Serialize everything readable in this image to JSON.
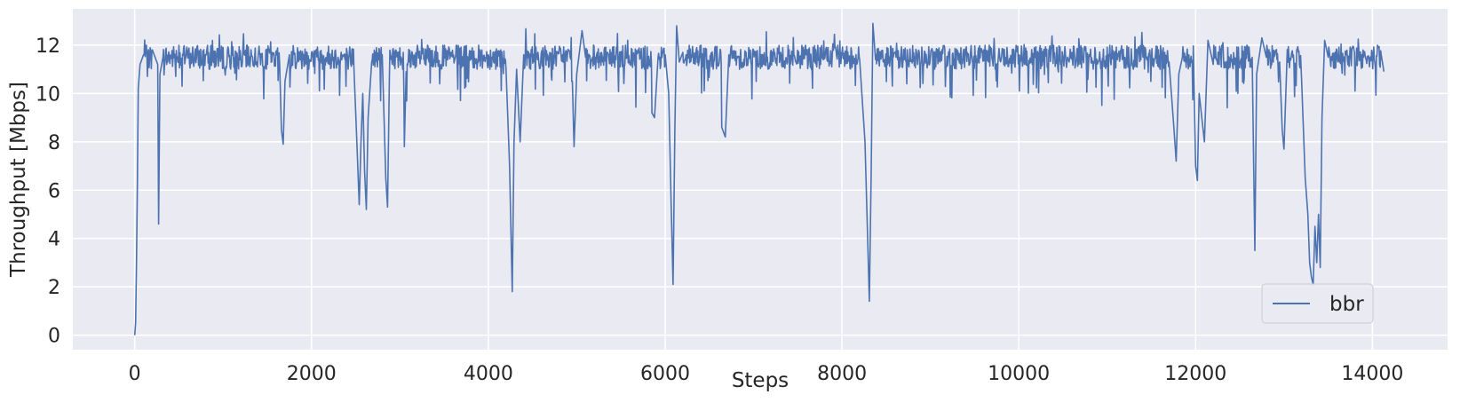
{
  "chart_data": {
    "type": "line",
    "xlabel": "Steps",
    "ylabel": "Throughput [Mbps]",
    "xlim": [
      -700,
      14850
    ],
    "ylim": [
      -0.6,
      13.5
    ],
    "xticks": [
      0,
      2000,
      4000,
      6000,
      8000,
      10000,
      12000,
      14000
    ],
    "yticks": [
      0,
      2,
      4,
      6,
      8,
      10,
      12
    ],
    "grid": true,
    "legend_position": "lower-right",
    "background_color": "#EAEAF2",
    "grid_color": "#FFFFFF",
    "series": [
      {
        "name": "bbr",
        "color": "#4C72B0",
        "baseline": 11.5,
        "x_range": [
          0,
          14130
        ],
        "points": [
          [
            0,
            0.0
          ],
          [
            10,
            0.5
          ],
          [
            20,
            3.0
          ],
          [
            30,
            6.2
          ],
          [
            40,
            10.2
          ],
          [
            60,
            11.2
          ],
          [
            100,
            11.6
          ],
          [
            200,
            11.8
          ],
          [
            260,
            11.2
          ],
          [
            270,
            4.6
          ],
          [
            285,
            10.8
          ],
          [
            320,
            11.5
          ],
          [
            500,
            12.0
          ],
          [
            800,
            11.6
          ],
          [
            1000,
            11.9
          ],
          [
            1200,
            11.5
          ],
          [
            1400,
            11.7
          ],
          [
            1640,
            11.2
          ],
          [
            1660,
            8.5
          ],
          [
            1680,
            7.9
          ],
          [
            1700,
            10.5
          ],
          [
            1750,
            11.6
          ],
          [
            2000,
            11.7
          ],
          [
            2300,
            11.5
          ],
          [
            2480,
            11.0
          ],
          [
            2510,
            8.2
          ],
          [
            2540,
            5.4
          ],
          [
            2560,
            8.0
          ],
          [
            2580,
            10.0
          ],
          [
            2600,
            6.8
          ],
          [
            2620,
            5.2
          ],
          [
            2640,
            9.0
          ],
          [
            2680,
            11.3
          ],
          [
            2800,
            11.6
          ],
          [
            2840,
            6.5
          ],
          [
            2860,
            5.3
          ],
          [
            2880,
            10.5
          ],
          [
            2950,
            11.8
          ],
          [
            3050,
            7.8
          ],
          [
            3070,
            10.9
          ],
          [
            3300,
            11.8
          ],
          [
            3600,
            11.5
          ],
          [
            4000,
            11.6
          ],
          [
            4200,
            11.0
          ],
          [
            4240,
            7.0
          ],
          [
            4270,
            1.8
          ],
          [
            4290,
            8.0
          ],
          [
            4320,
            11.0
          ],
          [
            4360,
            8.0
          ],
          [
            4400,
            11.6
          ],
          [
            4700,
            11.5
          ],
          [
            4950,
            10.5
          ],
          [
            4970,
            7.8
          ],
          [
            5000,
            10.8
          ],
          [
            5060,
            12.6
          ],
          [
            5100,
            11.5
          ],
          [
            5400,
            11.6
          ],
          [
            5600,
            11.2
          ],
          [
            5700,
            11.7
          ],
          [
            5850,
            9.2
          ],
          [
            5880,
            9.0
          ],
          [
            5920,
            11.5
          ],
          [
            6000,
            11.6
          ],
          [
            6040,
            10.0
          ],
          [
            6070,
            5.0
          ],
          [
            6090,
            2.1
          ],
          [
            6110,
            8.5
          ],
          [
            6130,
            12.8
          ],
          [
            6160,
            11.3
          ],
          [
            6200,
            11.7
          ],
          [
            6400,
            11.5
          ],
          [
            6640,
            8.6
          ],
          [
            6680,
            8.2
          ],
          [
            6720,
            11.6
          ],
          [
            7000,
            11.8
          ],
          [
            7300,
            11.4
          ],
          [
            7600,
            11.6
          ],
          [
            8000,
            11.7
          ],
          [
            8200,
            11.4
          ],
          [
            8260,
            8.0
          ],
          [
            8290,
            4.0
          ],
          [
            8310,
            1.4
          ],
          [
            8330,
            6.5
          ],
          [
            8350,
            12.9
          ],
          [
            8380,
            11.4
          ],
          [
            8600,
            11.7
          ],
          [
            9000,
            11.5
          ],
          [
            9400,
            11.6
          ],
          [
            9800,
            11.4
          ],
          [
            10000,
            11.6
          ],
          [
            10400,
            11.5
          ],
          [
            10800,
            11.6
          ],
          [
            11200,
            11.5
          ],
          [
            11500,
            11.4
          ],
          [
            11700,
            11.3
          ],
          [
            11750,
            8.8
          ],
          [
            11780,
            7.2
          ],
          [
            11810,
            10.8
          ],
          [
            11850,
            11.5
          ],
          [
            11980,
            10.8
          ],
          [
            12000,
            7.0
          ],
          [
            12020,
            6.4
          ],
          [
            12040,
            10.0
          ],
          [
            12100,
            8.0
          ],
          [
            12140,
            12.2
          ],
          [
            12200,
            11.2
          ],
          [
            12400,
            11.6
          ],
          [
            12640,
            11.5
          ],
          [
            12670,
            3.5
          ],
          [
            12690,
            10.8
          ],
          [
            12750,
            12.3
          ],
          [
            12800,
            11.5
          ],
          [
            12950,
            11.3
          ],
          [
            12980,
            8.5
          ],
          [
            13000,
            7.7
          ],
          [
            13030,
            11.0
          ],
          [
            13100,
            11.5
          ],
          [
            13200,
            10.5
          ],
          [
            13240,
            6.5
          ],
          [
            13270,
            5.0
          ],
          [
            13290,
            3.0
          ],
          [
            13310,
            2.4
          ],
          [
            13330,
            2.1
          ],
          [
            13350,
            4.5
          ],
          [
            13370,
            3.0
          ],
          [
            13390,
            5.0
          ],
          [
            13410,
            2.8
          ],
          [
            13430,
            9.0
          ],
          [
            13460,
            12.2
          ],
          [
            13500,
            11.5
          ],
          [
            13700,
            11.6
          ],
          [
            13900,
            11.5
          ],
          [
            14100,
            11.6
          ],
          [
            14130,
            10.9
          ]
        ]
      }
    ]
  }
}
